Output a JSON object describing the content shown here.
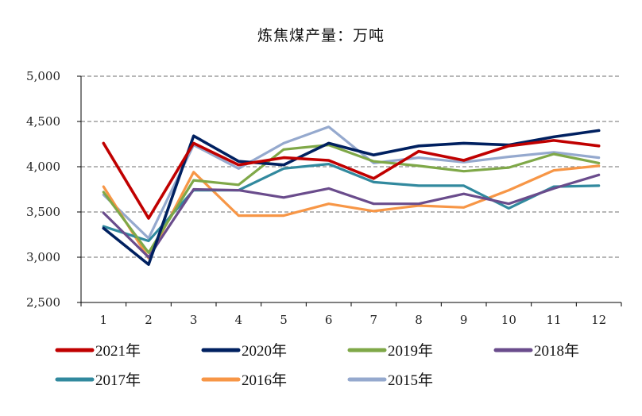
{
  "chart_data": {
    "type": "line",
    "title": "炼焦煤产量：万吨",
    "xlabel": "",
    "ylabel": "",
    "categories": [
      "1",
      "2",
      "3",
      "4",
      "5",
      "6",
      "7",
      "8",
      "9",
      "10",
      "11",
      "12"
    ],
    "ylim": [
      2500,
      5000
    ],
    "yticks": [
      2500,
      3000,
      3500,
      4000,
      4500,
      5000
    ],
    "ytick_labels": [
      "2,500",
      "3,000",
      "3,500",
      "4,000",
      "4,500",
      "5,000"
    ],
    "grid": "horizontal dashed",
    "legend_position": "bottom",
    "series": [
      {
        "name": "2021年",
        "color": "#c00000",
        "values": [
          4260,
          3430,
          4260,
          4020,
          4100,
          4070,
          3870,
          4170,
          4070,
          4230,
          4290,
          4230
        ]
      },
      {
        "name": "2020年",
        "color": "#002060",
        "values": [
          3320,
          2920,
          4340,
          4060,
          4020,
          4260,
          4130,
          4230,
          4260,
          4240,
          4330,
          4400
        ]
      },
      {
        "name": "2019年",
        "color": "#7fa848",
        "values": [
          3720,
          3050,
          3850,
          3800,
          4190,
          4240,
          4060,
          4010,
          3950,
          3990,
          4140,
          4040
        ]
      },
      {
        "name": "2018年",
        "color": "#6a4c8c",
        "values": [
          3490,
          3000,
          3750,
          3740,
          3660,
          3760,
          3590,
          3590,
          3700,
          3590,
          3760,
          3910
        ]
      },
      {
        "name": "2017年",
        "color": "#31899e",
        "values": [
          3340,
          3180,
          3740,
          3740,
          3980,
          4030,
          3830,
          3790,
          3790,
          3540,
          3780,
          3790
        ]
      },
      {
        "name": "2016年",
        "color": "#f79646",
        "values": [
          3780,
          2990,
          3940,
          3460,
          3460,
          3590,
          3510,
          3570,
          3550,
          3740,
          3960,
          4010
        ]
      },
      {
        "name": "2015年",
        "color": "#95a9ce",
        "values": [
          3690,
          3210,
          4240,
          3980,
          4260,
          4440,
          4040,
          4100,
          4050,
          4110,
          4160,
          4100
        ]
      }
    ]
  }
}
